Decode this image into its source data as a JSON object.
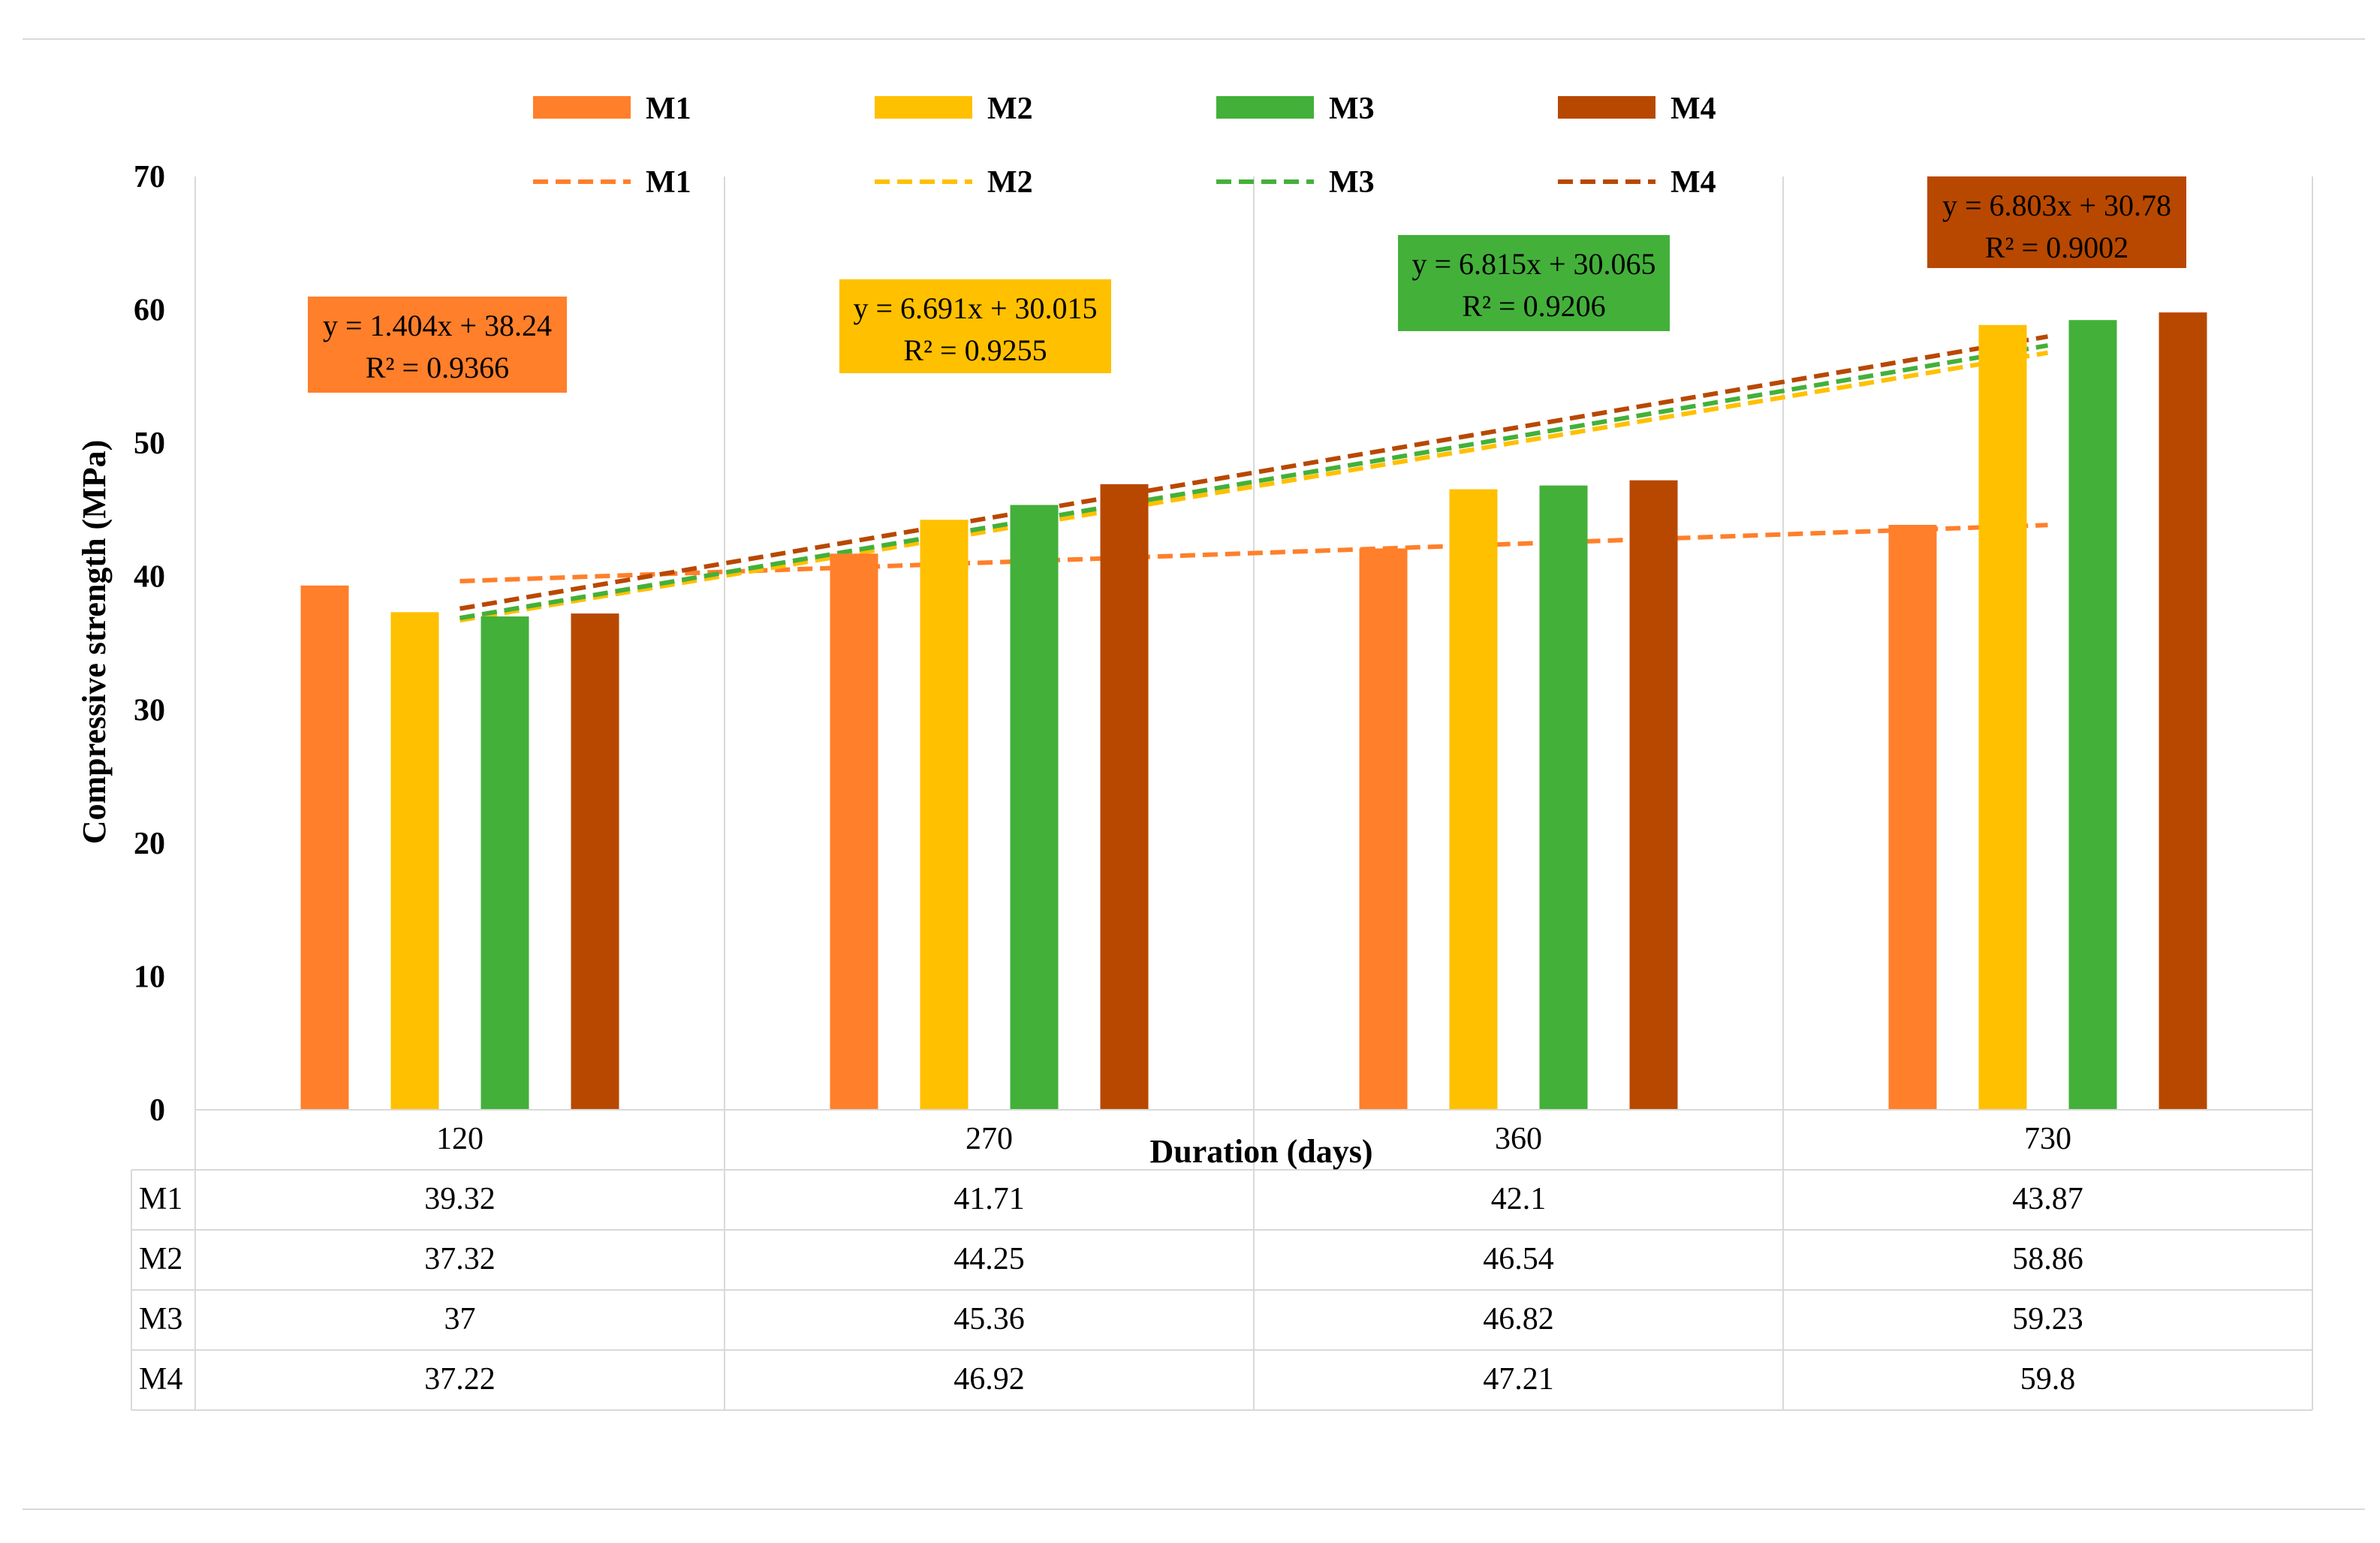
{
  "chart_data": {
    "type": "bar",
    "title": "",
    "xlabel": "Duration (days)",
    "ylabel": "Compressive strength (MPa)",
    "ylim": [
      0,
      70
    ],
    "yticks": [
      "0",
      "10",
      "20",
      "30",
      "40",
      "50",
      "60",
      "70"
    ],
    "categories": [
      "120",
      "270",
      "360",
      "730"
    ],
    "series": [
      {
        "name": "M1",
        "color": "#FF7F2A",
        "values": [
          39.32,
          41.71,
          42.1,
          43.87
        ]
      },
      {
        "name": "M2",
        "color": "#FFC000",
        "values": [
          37.32,
          44.25,
          46.54,
          58.86
        ]
      },
      {
        "name": "M3",
        "color": "#43B03A",
        "values": [
          37,
          45.36,
          46.82,
          59.23
        ]
      },
      {
        "name": "M4",
        "color": "#B84800",
        "values": [
          37.22,
          46.92,
          47.21,
          59.8
        ]
      }
    ],
    "trendlines": [
      {
        "series": "M1",
        "color": "#FF7F2A",
        "slope": 1.404,
        "intercept": 38.24,
        "equation": "y = 1.404x + 38.24",
        "r2": "R² = 0.9366"
      },
      {
        "series": "M2",
        "color": "#FFC000",
        "slope": 6.691,
        "intercept": 30.015,
        "equation": "y = 6.691x + 30.015",
        "r2": "R² = 0.9255"
      },
      {
        "series": "M3",
        "color": "#43B03A",
        "slope": 6.815,
        "intercept": 30.065,
        "equation": "y = 6.815x + 30.065",
        "r2": "R² = 0.9206"
      },
      {
        "series": "M4",
        "color": "#B84800",
        "slope": 6.803,
        "intercept": 30.78,
        "equation": "y = 6.803x + 30.78",
        "r2": "R² = 0.9002"
      }
    ],
    "legend_position": "top",
    "data_table": true,
    "grid": "vertical"
  }
}
